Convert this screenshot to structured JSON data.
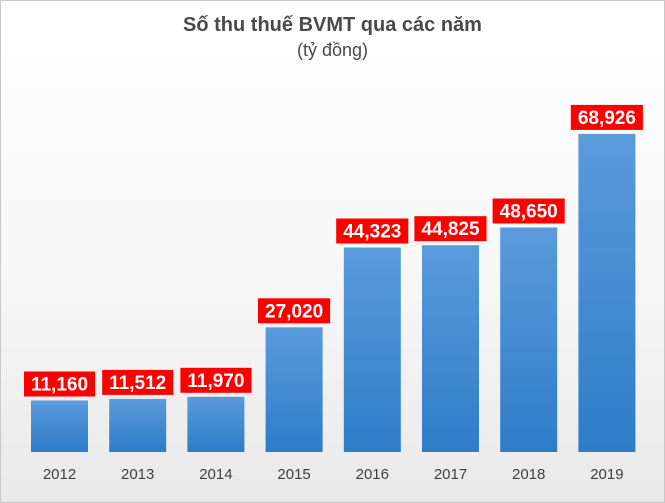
{
  "chart_data": {
    "type": "bar",
    "title": "Số thu thuế BVMT qua các năm",
    "subtitle": "(tỷ đồng)",
    "categories": [
      "2012",
      "2013",
      "2014",
      "2015",
      "2016",
      "2017",
      "2018",
      "2019"
    ],
    "values": [
      11160,
      11512,
      11970,
      27020,
      44323,
      44825,
      48650,
      68926
    ],
    "value_labels": [
      "11,160",
      "11,512",
      "11,970",
      "27,020",
      "44,323",
      "44,825",
      "48,650",
      "68,926"
    ],
    "xlabel": "",
    "ylabel": "",
    "ylim": [
      0,
      75000
    ],
    "grid": false,
    "legend": "none",
    "colors": {
      "bar_top": "#5a9bdb",
      "bar_bottom": "#2f7cc7",
      "label_bg": "#ff0000",
      "label_text": "#ffffff"
    }
  }
}
